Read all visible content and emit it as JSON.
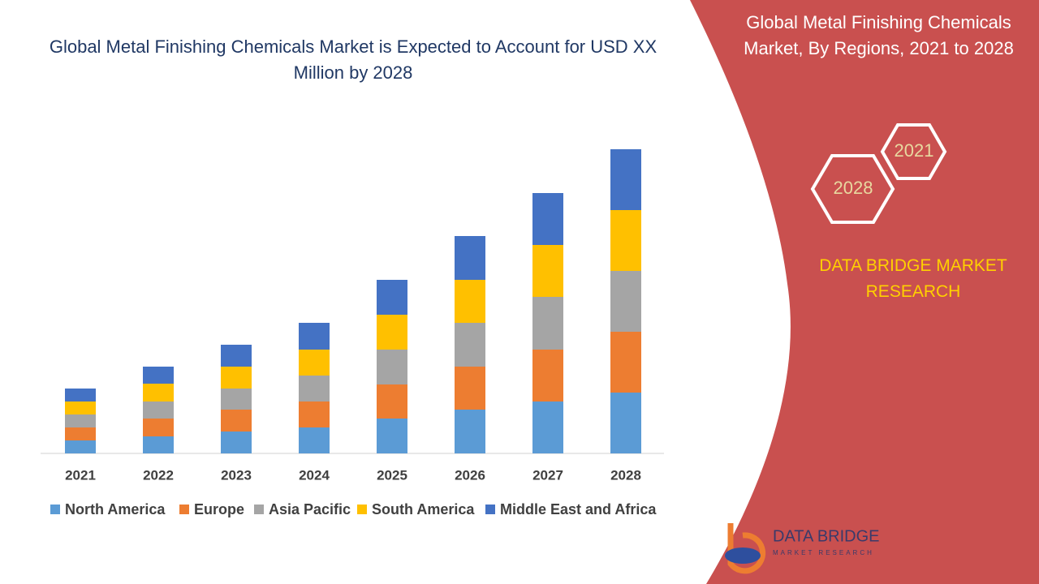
{
  "chart_data": {
    "type": "stacked_bar",
    "title": "Global Metal Finishing Chemicals Market is Expected to Account for USD XX Million by 2028",
    "categories": [
      "2021",
      "2022",
      "2023",
      "2024",
      "2025",
      "2026",
      "2027",
      "2028"
    ],
    "series": [
      {
        "name": "North America",
        "color": "#5b9bd5",
        "values": [
          16,
          21,
          27,
          32,
          43,
          54,
          64,
          75
        ]
      },
      {
        "name": "Europe",
        "color": "#ed7d31",
        "values": [
          16,
          22,
          27,
          32,
          42,
          53,
          64,
          75
        ]
      },
      {
        "name": "Asia Pacific",
        "color": "#a5a5a5",
        "values": [
          16,
          21,
          26,
          32,
          43,
          54,
          65,
          75
        ]
      },
      {
        "name": "South America",
        "color": "#ffc000",
        "values": [
          16,
          22,
          27,
          32,
          43,
          53,
          64,
          75
        ]
      },
      {
        "name": "Middle East and Africa",
        "color": "#4472c4",
        "values": [
          16,
          21,
          27,
          33,
          43,
          54,
          64,
          75
        ]
      }
    ],
    "legend": "bottom"
  },
  "side_panel": {
    "title": "Global Metal Finishing Chemicals Market, By Regions, 2021 to 2028",
    "hexagon_labels": [
      "2021",
      "2028"
    ],
    "brand": "DATA BRIDGE MARKET RESEARCH",
    "logo_name": "DATA BRIDGE",
    "logo_tagline": "MARKET RESEARCH"
  }
}
